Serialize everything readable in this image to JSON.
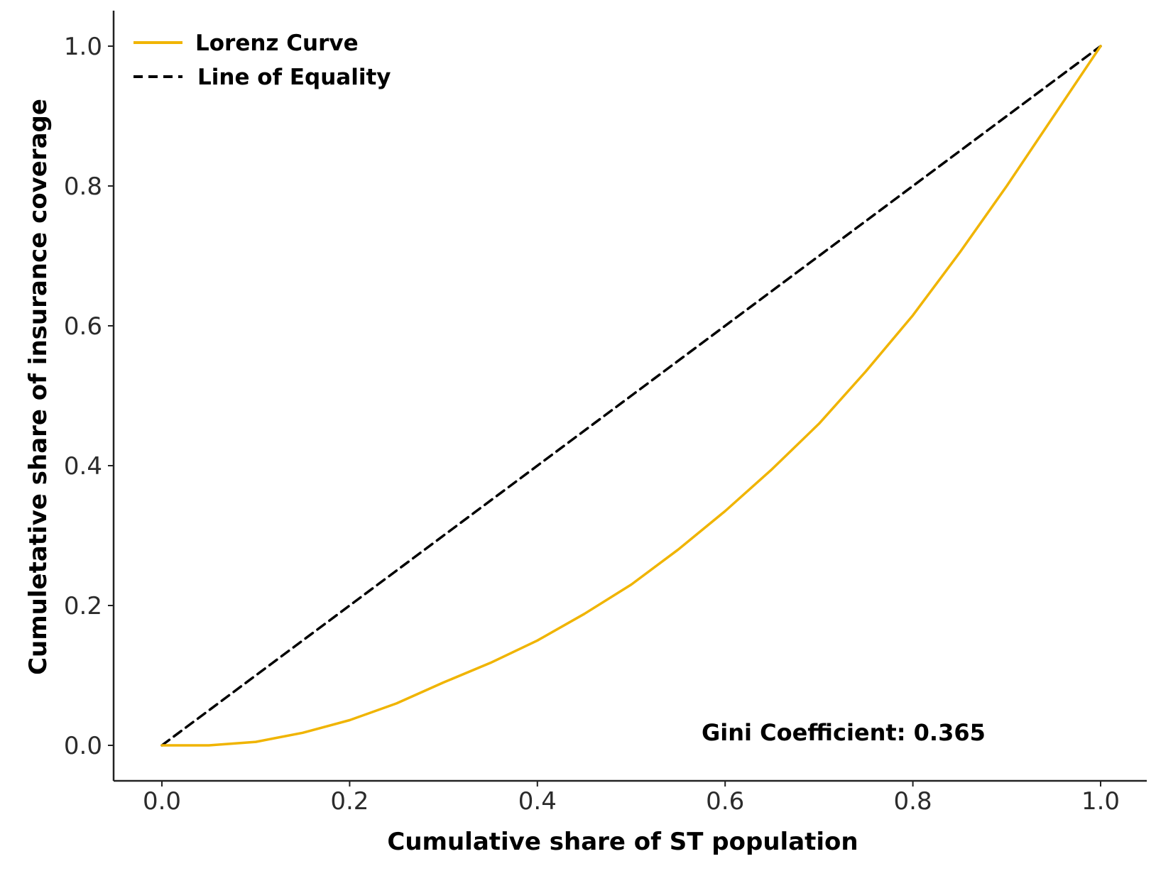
{
  "chart_data": {
    "type": "line",
    "xlabel": "Cumulative share of ST population",
    "ylabel": "Cumuletative share of insurance coverage",
    "xlim": [
      -0.05,
      1.05
    ],
    "ylim": [
      -0.05,
      1.05
    ],
    "xticks": [
      0.0,
      0.2,
      0.4,
      0.6,
      0.8,
      1.0
    ],
    "yticks": [
      0.0,
      0.2,
      0.4,
      0.6,
      0.8,
      1.0
    ],
    "xtick_labels": [
      "0.0",
      "0.2",
      "0.4",
      "0.6",
      "0.8",
      "1.0"
    ],
    "ytick_labels": [
      "0.0",
      "0.2",
      "0.4",
      "0.6",
      "0.8",
      "1.0"
    ],
    "grid": false,
    "legend_position": "top-left",
    "series": [
      {
        "name": "Lorenz Curve",
        "color": "#f0b400",
        "style": "solid",
        "x": [
          0.0,
          0.05,
          0.1,
          0.15,
          0.2,
          0.25,
          0.3,
          0.35,
          0.4,
          0.45,
          0.5,
          0.55,
          0.6,
          0.65,
          0.7,
          0.75,
          0.8,
          0.85,
          0.9,
          0.95,
          1.0
        ],
        "y": [
          0.0,
          0.0,
          0.005,
          0.018,
          0.036,
          0.06,
          0.09,
          0.118,
          0.15,
          0.188,
          0.23,
          0.28,
          0.335,
          0.395,
          0.46,
          0.535,
          0.615,
          0.705,
          0.8,
          0.9,
          1.0
        ]
      },
      {
        "name": "Line of Equality",
        "color": "#000000",
        "style": "dashed",
        "x": [
          0.0,
          1.0
        ],
        "y": [
          0.0,
          1.0
        ]
      }
    ],
    "annotations": [
      {
        "text": "Gini Coefficient: 0.365",
        "x": 0.575,
        "y": 0.02
      }
    ]
  }
}
